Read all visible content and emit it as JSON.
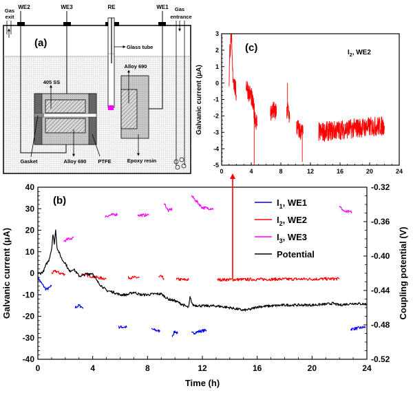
{
  "figure": {
    "panel_a": {
      "label": "(a)",
      "electrodes": [
        "WE2",
        "WE3",
        "RE",
        "WE1"
      ],
      "gas_exit": [
        "Gas",
        "exit"
      ],
      "gas_entrance": [
        "Gas",
        "entrance"
      ],
      "labels": {
        "glass_tube": "Glass tube",
        "alloy_690_top": "Alloy 690",
        "ss_405": "405 SS",
        "gasket": "Gasket",
        "alloy_690_bottom": "Alloy 690",
        "ptfe": "PTFE",
        "epoxy": "Epoxy resin"
      },
      "colors": {
        "re_tip": "#ff00ff"
      }
    }
  },
  "chart_data": [
    {
      "id": "b",
      "type": "line",
      "panel_label": "(b)",
      "xlabel": "Time (h)",
      "ylabel": "Galvanic current (μA)",
      "y2label": "Coupling potential (V)",
      "xlim": [
        0,
        24
      ],
      "ylim": [
        -40,
        40
      ],
      "y2lim": [
        -0.52,
        -0.32
      ],
      "xticks": [
        "0",
        "4",
        "8",
        "12",
        "16",
        "20",
        "24"
      ],
      "yticks": [
        "-40",
        "-30",
        "-20",
        "-10",
        "0",
        "10",
        "20",
        "30",
        "40"
      ],
      "y2ticks": [
        "-0.52",
        "-0.48",
        "-0.44",
        "-0.40",
        "-0.36",
        "-0.32"
      ],
      "grid": false,
      "legend_position": "top-right",
      "series": [
        {
          "name": "I1, WE1",
          "label_main": "I",
          "label_sub": "1",
          "label_rest": ", WE1",
          "color": "#0000ff",
          "axis": "left",
          "segments": [
            {
              "x": [
                0,
                0.3,
                0.6,
                0.8,
                1.0
              ],
              "y": [
                -2,
                -5,
                -7.5,
                -7,
                -6
              ]
            },
            {
              "x": [
                2.7,
                3.0,
                3.3
              ],
              "y": [
                -16,
                -15,
                -16
              ]
            },
            {
              "x": [
                5.9,
                6.2,
                6.5
              ],
              "y": [
                -25,
                -25,
                -25
              ]
            },
            {
              "x": [
                8.3,
                8.6,
                8.9
              ],
              "y": [
                -26,
                -26.5,
                -27
              ]
            },
            {
              "x": [
                9.8,
                10.0,
                10.2
              ],
              "y": [
                -29,
                -27,
                -28
              ]
            },
            {
              "x": [
                11.2,
                11.8,
                12.3
              ],
              "y": [
                -28,
                -27,
                -26.5
              ]
            },
            {
              "x": [
                22.8,
                23.4,
                23.9
              ],
              "y": [
                -26,
                -25.5,
                -25
              ]
            }
          ]
        },
        {
          "name": "I2, WE2",
          "label_main": "I",
          "label_sub": "2",
          "label_rest": ", WE2",
          "color": "#ff0000",
          "axis": "left",
          "segments": [
            {
              "x": [
                1.0,
                1.3,
                1.6,
                2.0
              ],
              "y": [
                0,
                1,
                0,
                -0.5
              ]
            },
            {
              "x": [
                3.2,
                4.0,
                4.5,
                5.0
              ],
              "y": [
                -0.5,
                -1.5,
                -2.2,
                -2.5
              ]
            },
            {
              "x": [
                6.6,
                7.0,
                7.4
              ],
              "y": [
                -2,
                -2,
                -2
              ]
            },
            {
              "x": [
                8.8,
                9.0,
                9.2
              ],
              "y": [
                -2,
                -1.5,
                -2.5
              ]
            },
            {
              "x": [
                10.1,
                10.6,
                11.0
              ],
              "y": [
                -2.8,
                -3,
                -3
              ]
            },
            {
              "x": [
                13.1,
                17.0,
                22.0
              ],
              "y": [
                -3,
                -2.8,
                -2.6
              ]
            }
          ]
        },
        {
          "name": "I3, WE3",
          "label_main": "I",
          "label_sub": "3",
          "label_rest": ", WE3",
          "color": "#ff00ff",
          "axis": "left",
          "segments": [
            {
              "x": [
                1.9,
                2.3,
                2.6
              ],
              "y": [
                15,
                16,
                16.5
              ]
            },
            {
              "x": [
                4.9,
                5.3,
                5.8
              ],
              "y": [
                26.5,
                27,
                27.5
              ]
            },
            {
              "x": [
                7.3,
                7.7,
                8.1
              ],
              "y": [
                27,
                27,
                27
              ]
            },
            {
              "x": [
                9.2,
                9.5,
                9.8
              ],
              "y": [
                33,
                29,
                30
              ]
            },
            {
              "x": [
                11.2,
                12.0,
                12.8
              ],
              "y": [
                36,
                30.5,
                30
              ]
            },
            {
              "x": [
                22.0,
                22.4,
                22.9
              ],
              "y": [
                31,
                28.5,
                28.5
              ]
            }
          ]
        },
        {
          "name": "Potential",
          "color": "#000000",
          "axis": "right",
          "segments": [
            {
              "x": [
                0,
                0.2,
                0.4,
                0.6,
                0.8,
                1.0,
                1.1,
                1.2,
                1.3,
                1.4,
                1.6,
                1.8,
                2.0,
                2.3,
                2.6,
                3.0,
                3.2,
                3.5,
                4.0,
                4.3,
                4.6,
                5.0,
                5.5,
                6.0,
                6.5,
                7.0,
                7.5,
                8.0,
                8.5,
                9.0,
                9.5,
                10.0,
                10.5,
                11.0,
                11.1,
                11.3,
                12.0,
                13.0,
                14.0,
                15.0,
                15.5,
                16.0,
                17.0,
                18.0,
                19.0,
                20.0,
                21.0,
                21.5,
                22.0,
                22.5,
                23.0,
                24.0
              ],
              "y": [
                -0.42,
                -0.42,
                -0.418,
                -0.41,
                -0.405,
                -0.392,
                -0.375,
                -0.385,
                -0.37,
                -0.39,
                -0.398,
                -0.405,
                -0.408,
                -0.418,
                -0.415,
                -0.423,
                -0.423,
                -0.421,
                -0.42,
                -0.429,
                -0.434,
                -0.44,
                -0.442,
                -0.445,
                -0.445,
                -0.442,
                -0.445,
                -0.445,
                -0.444,
                -0.444,
                -0.45,
                -0.452,
                -0.456,
                -0.46,
                -0.448,
                -0.457,
                -0.458,
                -0.458,
                -0.46,
                -0.463,
                -0.462,
                -0.459,
                -0.458,
                -0.457,
                -0.457,
                -0.457,
                -0.456,
                -0.455,
                -0.457,
                -0.456,
                -0.455,
                -0.456
              ]
            }
          ]
        }
      ],
      "annotation_arrow": {
        "from_x_h": 14.2,
        "from_y_uA": -2.5,
        "target": "panel (c)"
      }
    },
    {
      "id": "c",
      "type": "line",
      "panel_label": "(c)",
      "inset_label_main": "I",
      "inset_label_sub": "2",
      "inset_label_rest": ", WE2",
      "ylabel": "Galvanic current (μA)",
      "xlim": [
        0,
        24
      ],
      "ylim": [
        -5,
        3
      ],
      "xticks": [
        "0",
        "4",
        "8",
        "12",
        "16",
        "20",
        "24"
      ],
      "yticks": [
        "-5",
        "-4",
        "-3",
        "-2",
        "-1",
        "0",
        "1",
        "2",
        "3"
      ],
      "grid": false,
      "series": [
        {
          "name": "I2, WE2",
          "color": "#ff0000",
          "segments": [
            {
              "x": [
                1.0,
                1.1,
                1.3,
                1.5,
                1.7,
                1.9,
                2.0
              ],
              "y": [
                0,
                1.9,
                3.0,
                0.5,
                0,
                -0.5,
                -0.8
              ],
              "noise": 0.6
            },
            {
              "x": [
                3.3,
                3.6,
                4.0,
                4.3,
                4.5,
                4.8
              ],
              "y": [
                0,
                -0.5,
                -0.8,
                -1.5,
                -2,
                -2.5
              ],
              "noise": 0.6
            },
            {
              "x": [
                6.6,
                7.0,
                7.4
              ],
              "y": [
                -1.8,
                -1.7,
                -1.9
              ],
              "noise": 0.6
            },
            {
              "x": [
                8.8,
                9.0,
                9.2
              ],
              "y": [
                -1.8,
                -1.5,
                -2.2
              ],
              "noise": 0.6
            },
            {
              "x": [
                10.1,
                10.6,
                11.0
              ],
              "y": [
                -2.7,
                -2.9,
                -3.1
              ],
              "noise": 0.6
            },
            {
              "x": [
                13.1,
                15.0,
                17.0,
                19.0,
                22.0
              ],
              "y": [
                -3.0,
                -2.9,
                -2.8,
                -2.7,
                -2.6
              ],
              "noise": 0.6
            }
          ]
        }
      ]
    }
  ]
}
